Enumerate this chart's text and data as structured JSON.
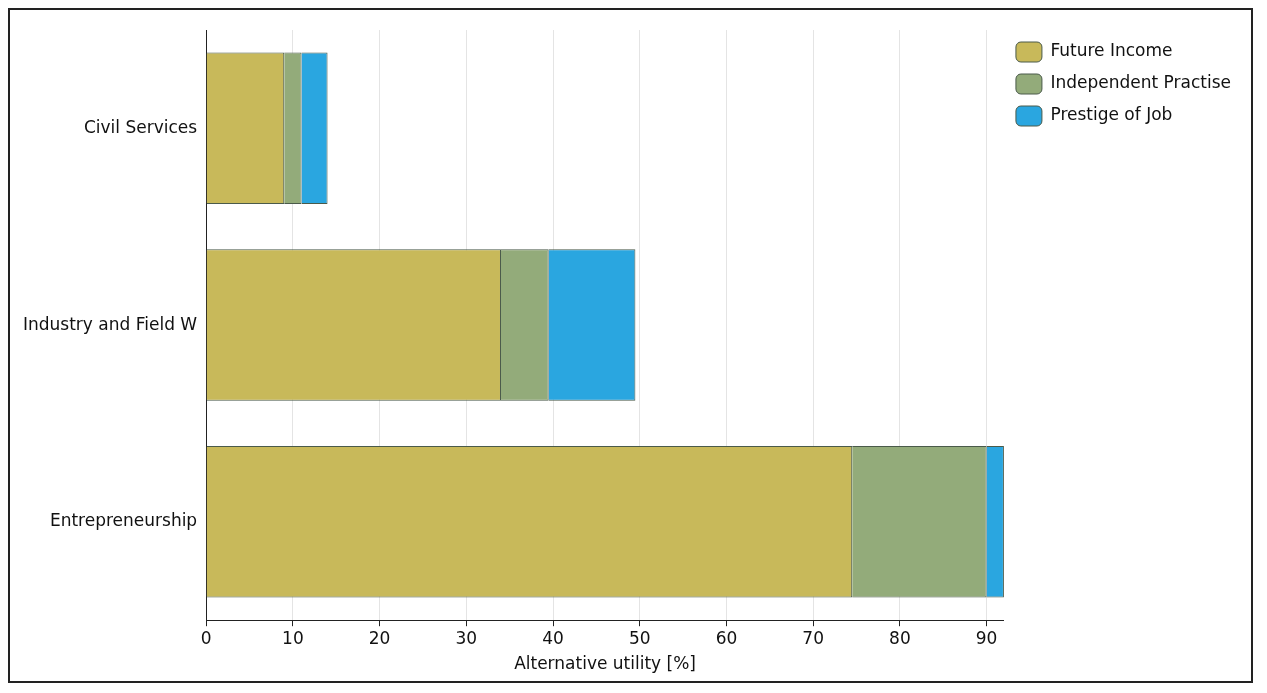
{
  "chart_data": {
    "type": "bar",
    "orientation": "horizontal",
    "stacked": true,
    "categories": [
      "Civil Services",
      "Industry and Field W",
      "Entrepreneurship"
    ],
    "series": [
      {
        "name": "Future Income",
        "color": "#c8b95a",
        "values": [
          9,
          34,
          74.5
        ]
      },
      {
        "name": "Independent Practise",
        "color": "#93ab7a",
        "values": [
          2,
          5.5,
          15.5
        ]
      },
      {
        "name": "Prestige of Job",
        "color": "#2aa6e0",
        "values": [
          3,
          10,
          2
        ]
      }
    ],
    "xlabel": "Alternative utility [%]",
    "xlim": [
      0,
      92
    ],
    "xticks": [
      0,
      10,
      20,
      30,
      40,
      50,
      60,
      70,
      80,
      90
    ],
    "grid": "x",
    "legend": "top right"
  }
}
